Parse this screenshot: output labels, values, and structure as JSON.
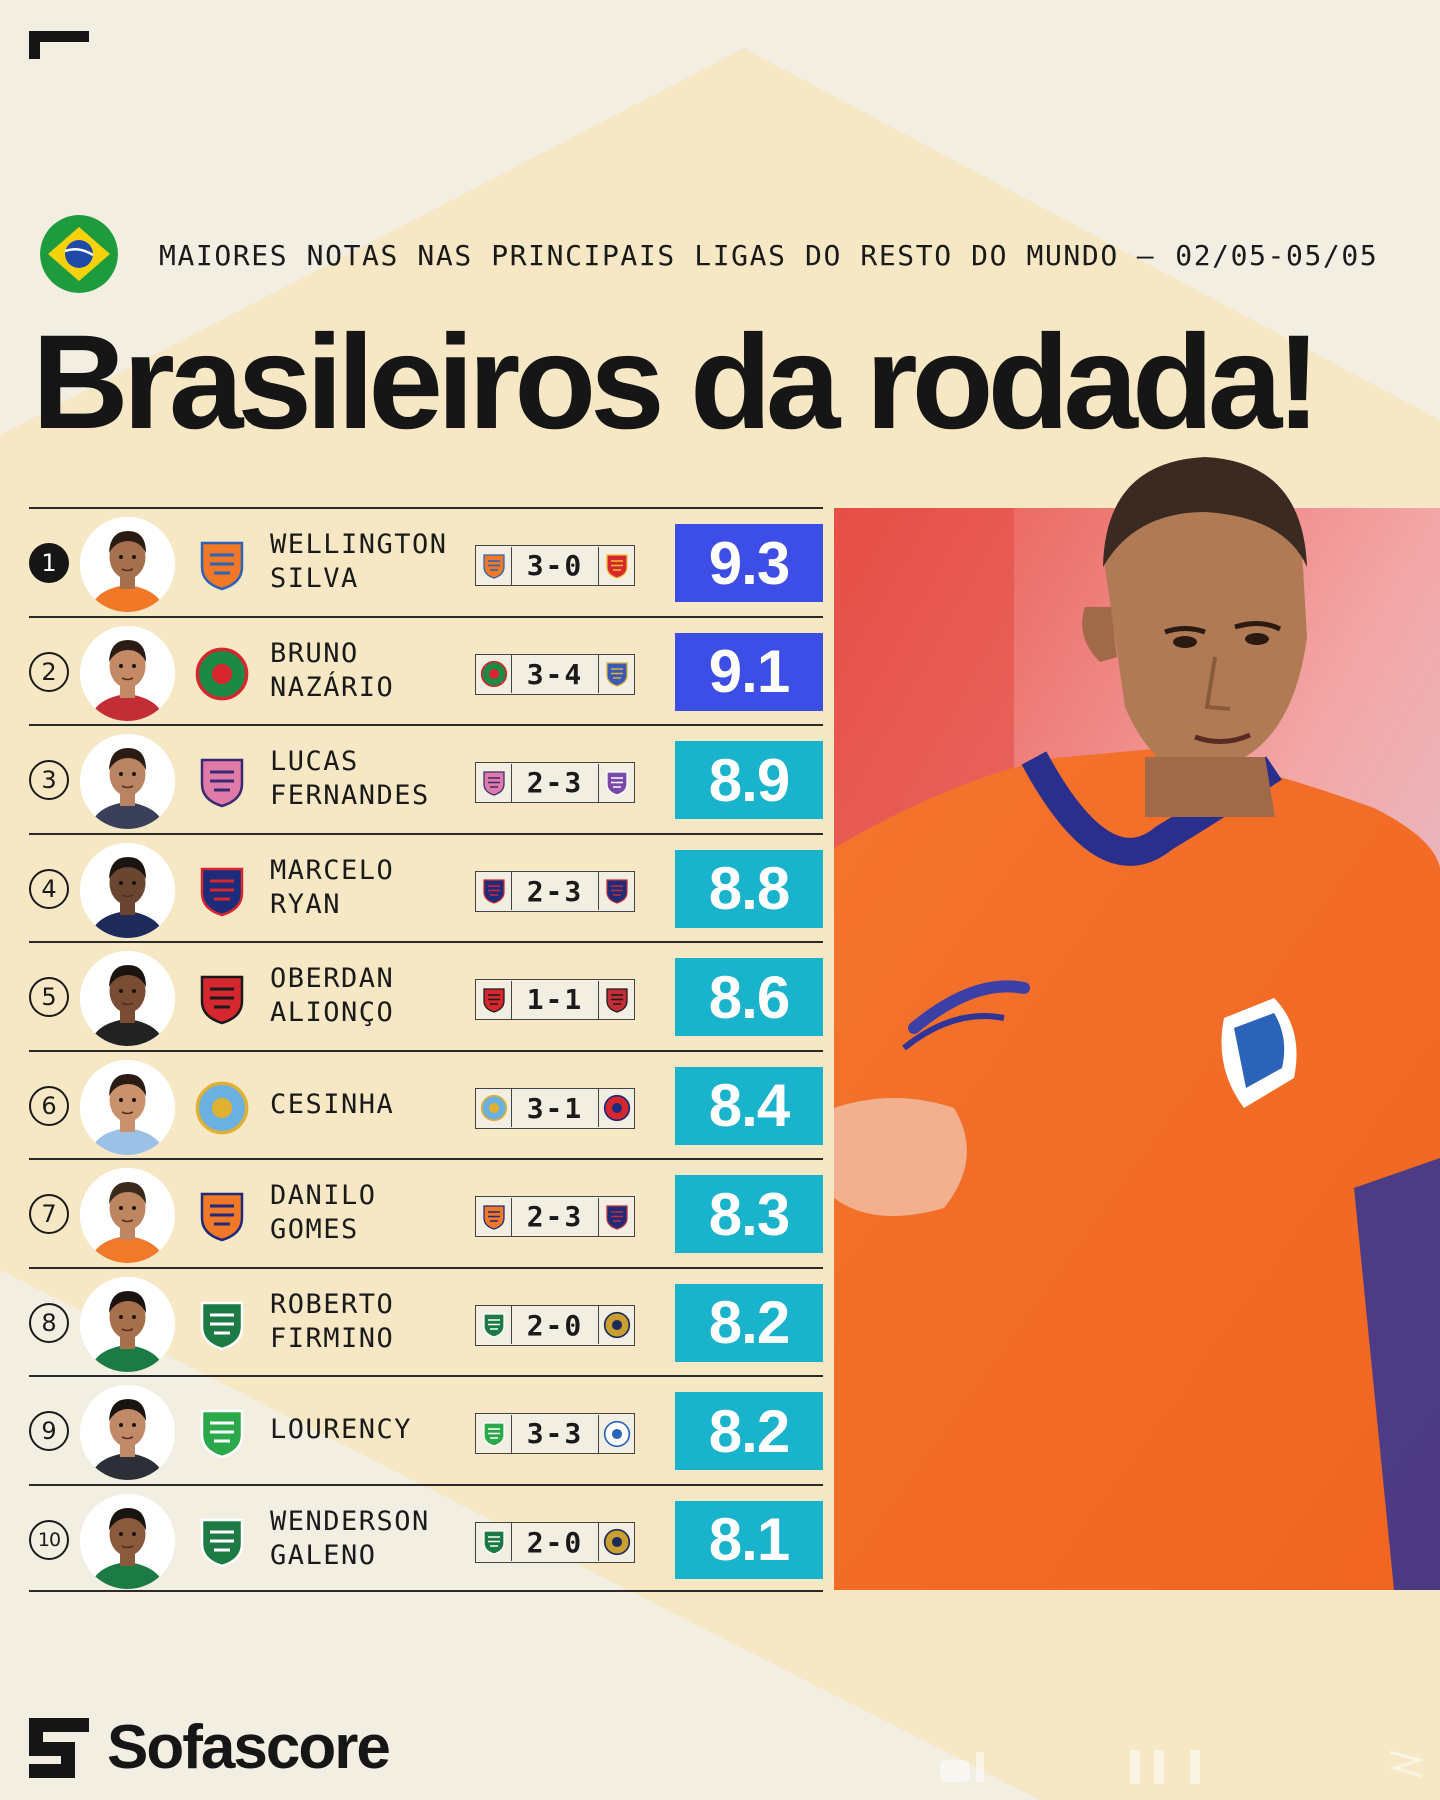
{
  "subtitle": {
    "text": "MAIORES NOTAS NAS PRINCIPAIS LIGAS DO RESTO DO  MUNDO",
    "dash": "—",
    "dates": "02/05-05/05"
  },
  "title": "Brasileiros da rodada!",
  "colors": {
    "background": "#f2efe2",
    "diamond": "#f6e8c4",
    "rating_top": "#3d4ee6",
    "rating_other": "#19b3cc",
    "ink": "#161616"
  },
  "players": [
    {
      "rank": "1",
      "first": "WELLINGTON",
      "last": "SILVA",
      "score": "3-0",
      "rating": "9.3",
      "club_icon": "dalian-yingbo-crest-icon",
      "opponent_icon": "red-shield-crest-icon"
    },
    {
      "rank": "2",
      "first": "BRUNO",
      "last": "NAZÁRIO",
      "score": "3-4",
      "rating": "9.1",
      "club_icon": "henan-crest-icon",
      "opponent_icon": "blue-gold-shield-crest-icon"
    },
    {
      "rank": "3",
      "first": "LUCAS",
      "last": "FERNANDES",
      "score": "2-3",
      "rating": "8.9",
      "club_icon": "cerezo-osaka-crest-icon",
      "opponent_icon": "purple-shield-crest-icon"
    },
    {
      "rank": "4",
      "first": "MARCELO",
      "last": "RYAN",
      "score": "2-3",
      "rating": "8.8",
      "club_icon": "fc-tokyo-crest-icon",
      "opponent_icon": "navy-red-shield-crest-icon"
    },
    {
      "rank": "5",
      "first": "OBERDAN",
      "last": "ALIONÇO",
      "score": "1-1",
      "rating": "8.6",
      "club_icon": "shonan-bellmare-crest-icon",
      "opponent_icon": "red-black-shield-crest-icon"
    },
    {
      "rank": "6",
      "first": "CESINHA",
      "last": "",
      "score": "3-1",
      "rating": "8.4",
      "club_icon": "daegu-fc-crest-icon",
      "opponent_icon": "red-round-crest-icon"
    },
    {
      "rank": "7",
      "first": "DANILO",
      "last": "GOMES",
      "score": "2-3",
      "rating": "8.3",
      "club_icon": "albirex-crest-icon",
      "opponent_icon": "navy-red-shield-crest-icon"
    },
    {
      "rank": "8",
      "first": "ROBERTO",
      "last": "FIRMINO",
      "score": "2-0",
      "rating": "8.2",
      "club_icon": "al-ahli-crest-icon",
      "opponent_icon": "gold-round-crest-icon"
    },
    {
      "rank": "9",
      "first": "LOURENCY",
      "last": "",
      "score": "3-3",
      "rating": "8.2",
      "club_icon": "al-ittifaq-crest-icon",
      "opponent_icon": "blue-round-crest-icon"
    },
    {
      "rank": "10",
      "first": "WENDERSON",
      "last": "GALENO",
      "score": "2-0",
      "rating": "8.1",
      "club_icon": "al-ahli-crest-icon",
      "opponent_icon": "gold-round-crest-icon"
    }
  ],
  "brand": {
    "name": "Sofascore"
  }
}
